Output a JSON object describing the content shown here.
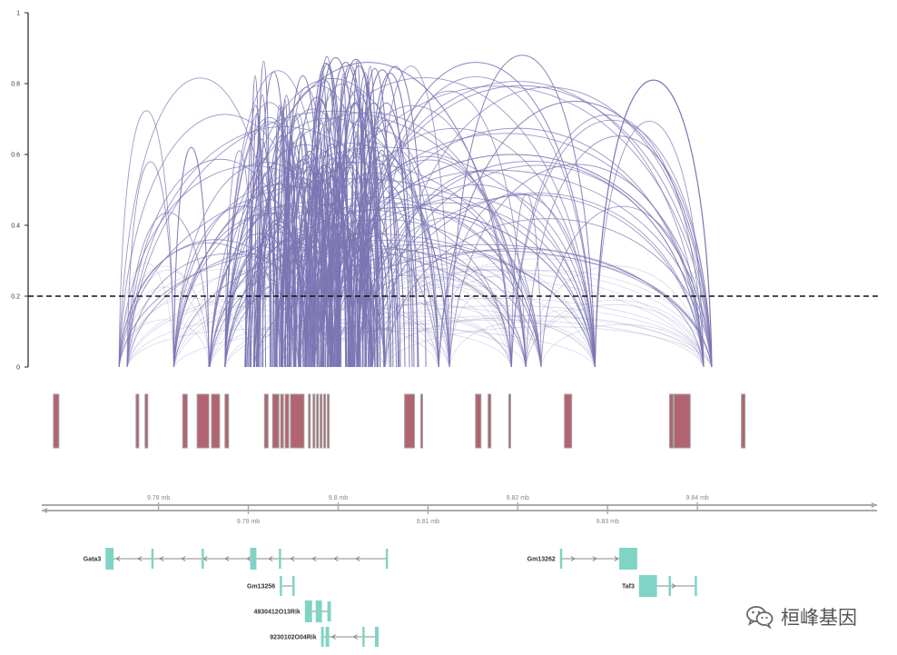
{
  "chart_data": {
    "type": "arc-diagram",
    "ylim": [
      0,
      1
    ],
    "y_ticks": [
      "0",
      "0.2",
      "0.4",
      "0.6",
      "0.8",
      "1"
    ],
    "threshold": 0.2,
    "colors": {
      "arc": "#7b76b3",
      "peak_fill": "#b26470",
      "peak_stroke": "#a0a0a0",
      "gene": "#80d4c6",
      "threshold": "#111111"
    },
    "axis_range_mb": [
      9.767,
      9.86
    ],
    "upper_scale_labels": [
      {
        "mb": 9.78,
        "label": "9.78 mb"
      },
      {
        "mb": 9.8,
        "label": "9.8 mb"
      },
      {
        "mb": 9.82,
        "label": "9.82 mb"
      },
      {
        "mb": 9.84,
        "label": "9.84 mb"
      }
    ],
    "lower_scale_labels": [
      {
        "mb": 9.79,
        "label": "9.79 mb"
      },
      {
        "mb": 9.81,
        "label": "9.81 mb"
      },
      {
        "mb": 9.83,
        "label": "9.83 mb"
      }
    ],
    "anchors_mb": [
      9.7756,
      9.7765,
      9.7817,
      9.7857,
      9.7874,
      9.7906,
      9.7937,
      9.7956,
      9.7973,
      9.7992,
      9.8021,
      9.8038,
      9.8052,
      9.8112,
      9.8124,
      9.8193,
      9.8209,
      9.8226,
      9.8286,
      9.8407,
      9.8416
    ],
    "peaks_mb": [
      [
        9.7683,
        9.7689
      ],
      [
        9.7775,
        9.7778
      ],
      [
        9.7785,
        9.7788
      ],
      [
        9.7827,
        9.7832
      ],
      [
        9.7843,
        9.7856
      ],
      [
        9.7859,
        9.7868
      ],
      [
        9.7874,
        9.7878
      ],
      [
        9.7918,
        9.7922
      ],
      [
        9.7927,
        9.7934
      ],
      [
        9.7936,
        9.7939
      ],
      [
        9.7941,
        9.7945
      ],
      [
        9.7947,
        9.7962
      ],
      [
        9.7967,
        9.7969
      ],
      [
        9.7972,
        9.7974
      ],
      [
        9.7976,
        9.7978
      ],
      [
        9.798,
        9.7982
      ],
      [
        9.7984,
        9.7986
      ],
      [
        9.7988,
        9.799
      ],
      [
        9.8074,
        9.8085
      ],
      [
        9.8092,
        9.8093
      ],
      [
        9.8153,
        9.8159
      ],
      [
        9.8167,
        9.817
      ],
      [
        9.819,
        9.8192
      ],
      [
        9.8252,
        9.826
      ],
      [
        9.8369,
        9.8373
      ],
      [
        9.8374,
        9.8392
      ],
      [
        9.8449,
        9.8453
      ]
    ],
    "genes": [
      {
        "name": "Gata3",
        "start": 9.7741,
        "end": 9.8054,
        "strand": "-",
        "exons": [
          [
            9.7741,
            9.775
          ],
          [
            9.7792,
            9.7794
          ],
          [
            9.7848,
            9.785
          ],
          [
            9.7902,
            9.7909
          ],
          [
            9.7934,
            9.7936
          ],
          [
            9.8053,
            9.8055
          ]
        ]
      },
      {
        "name": "Gm13262",
        "start": 9.8247,
        "end": 9.8331,
        "strand": "+",
        "exons": [
          [
            9.8247,
            9.8249
          ],
          [
            9.8313,
            9.8333
          ]
        ]
      },
      {
        "name": "Gm13256",
        "start": 9.7935,
        "end": 9.7951,
        "strand": "",
        "exons": [
          [
            9.7935,
            9.7937
          ],
          [
            9.7949,
            9.7951
          ]
        ]
      },
      {
        "name": "Taf3",
        "start": 9.8335,
        "end": 9.8399,
        "strand": "+",
        "exons": [
          [
            9.8335,
            9.8355
          ],
          [
            9.8368,
            9.837
          ],
          [
            9.8397,
            9.8399
          ]
        ]
      },
      {
        "name": "4930412O13Rik",
        "start": 9.7963,
        "end": 9.7992,
        "strand": "",
        "exons": [
          [
            9.7963,
            9.7971
          ],
          [
            9.7975,
            9.7982
          ],
          [
            9.7988,
            9.7992
          ]
        ]
      },
      {
        "name": "9230102O04Rik",
        "start": 9.7981,
        "end": 9.8045,
        "strand": "-",
        "exons": [
          [
            9.7981,
            9.7984
          ],
          [
            9.7986,
            9.799
          ],
          [
            9.8027,
            9.8029
          ],
          [
            9.8041,
            9.8045
          ]
        ]
      }
    ]
  },
  "watermark": {
    "text": "桓峰基因",
    "icon": "wechat-icon"
  }
}
